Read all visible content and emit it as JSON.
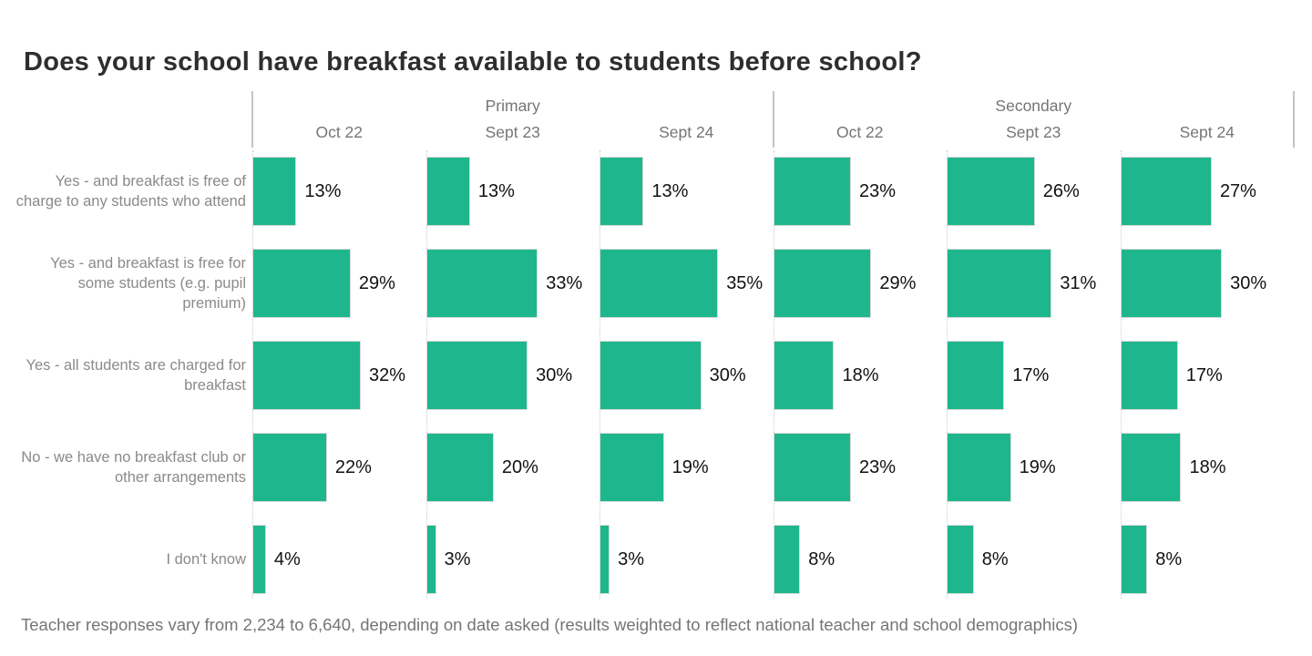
{
  "title": "Does your school have breakfast available to students before school?",
  "footnote": "Teacher responses vary from 2,234 to 6,640, depending on date asked (results weighted to reflect national teacher and school demographics)",
  "header": {
    "groups": [
      {
        "label": "Primary",
        "columns": [
          "Oct 22",
          "Sept 23",
          "Sept 24"
        ]
      },
      {
        "label": "Secondary",
        "columns": [
          "Oct 22",
          "Sept 23",
          "Sept 24"
        ]
      }
    ]
  },
  "chart_data": {
    "type": "bar",
    "orientation": "horizontal",
    "title": "Does your school have breakfast available to students before school?",
    "categories": [
      "Yes - and breakfast is free of charge to any students who attend",
      "Yes - and breakfast is free for some students (e.g. pupil premium)",
      "Yes - all students are charged for breakfast",
      "No - we have no breakfast club or other arrangements",
      "I don't know"
    ],
    "groups": [
      "Primary",
      "Secondary"
    ],
    "columns": [
      "Oct 22",
      "Sept 23",
      "Sept 24"
    ],
    "series": [
      {
        "group": "Primary",
        "column": "Oct 22",
        "values": [
          13,
          29,
          32,
          22,
          4
        ]
      },
      {
        "group": "Primary",
        "column": "Sept 23",
        "values": [
          13,
          33,
          30,
          20,
          3
        ]
      },
      {
        "group": "Primary",
        "column": "Sept 24",
        "values": [
          13,
          35,
          30,
          19,
          3
        ]
      },
      {
        "group": "Secondary",
        "column": "Oct 22",
        "values": [
          23,
          29,
          18,
          23,
          8
        ]
      },
      {
        "group": "Secondary",
        "column": "Sept 23",
        "values": [
          26,
          31,
          17,
          19,
          8
        ]
      },
      {
        "group": "Secondary",
        "column": "Sept 24",
        "values": [
          27,
          30,
          17,
          18,
          8
        ]
      }
    ],
    "value_suffix": "%",
    "xlim": [
      0,
      38
    ],
    "grid": "dotted-column-baselines",
    "legend": "none"
  },
  "colors": {
    "bar": "#1eb78d",
    "title_text": "#2e2e2e",
    "category_label": "#8a8a8a",
    "header_label": "#757575",
    "value_label": "#111111",
    "separator": "#c4c4c4",
    "gridline": "#cccccc",
    "background": "#ffffff"
  }
}
